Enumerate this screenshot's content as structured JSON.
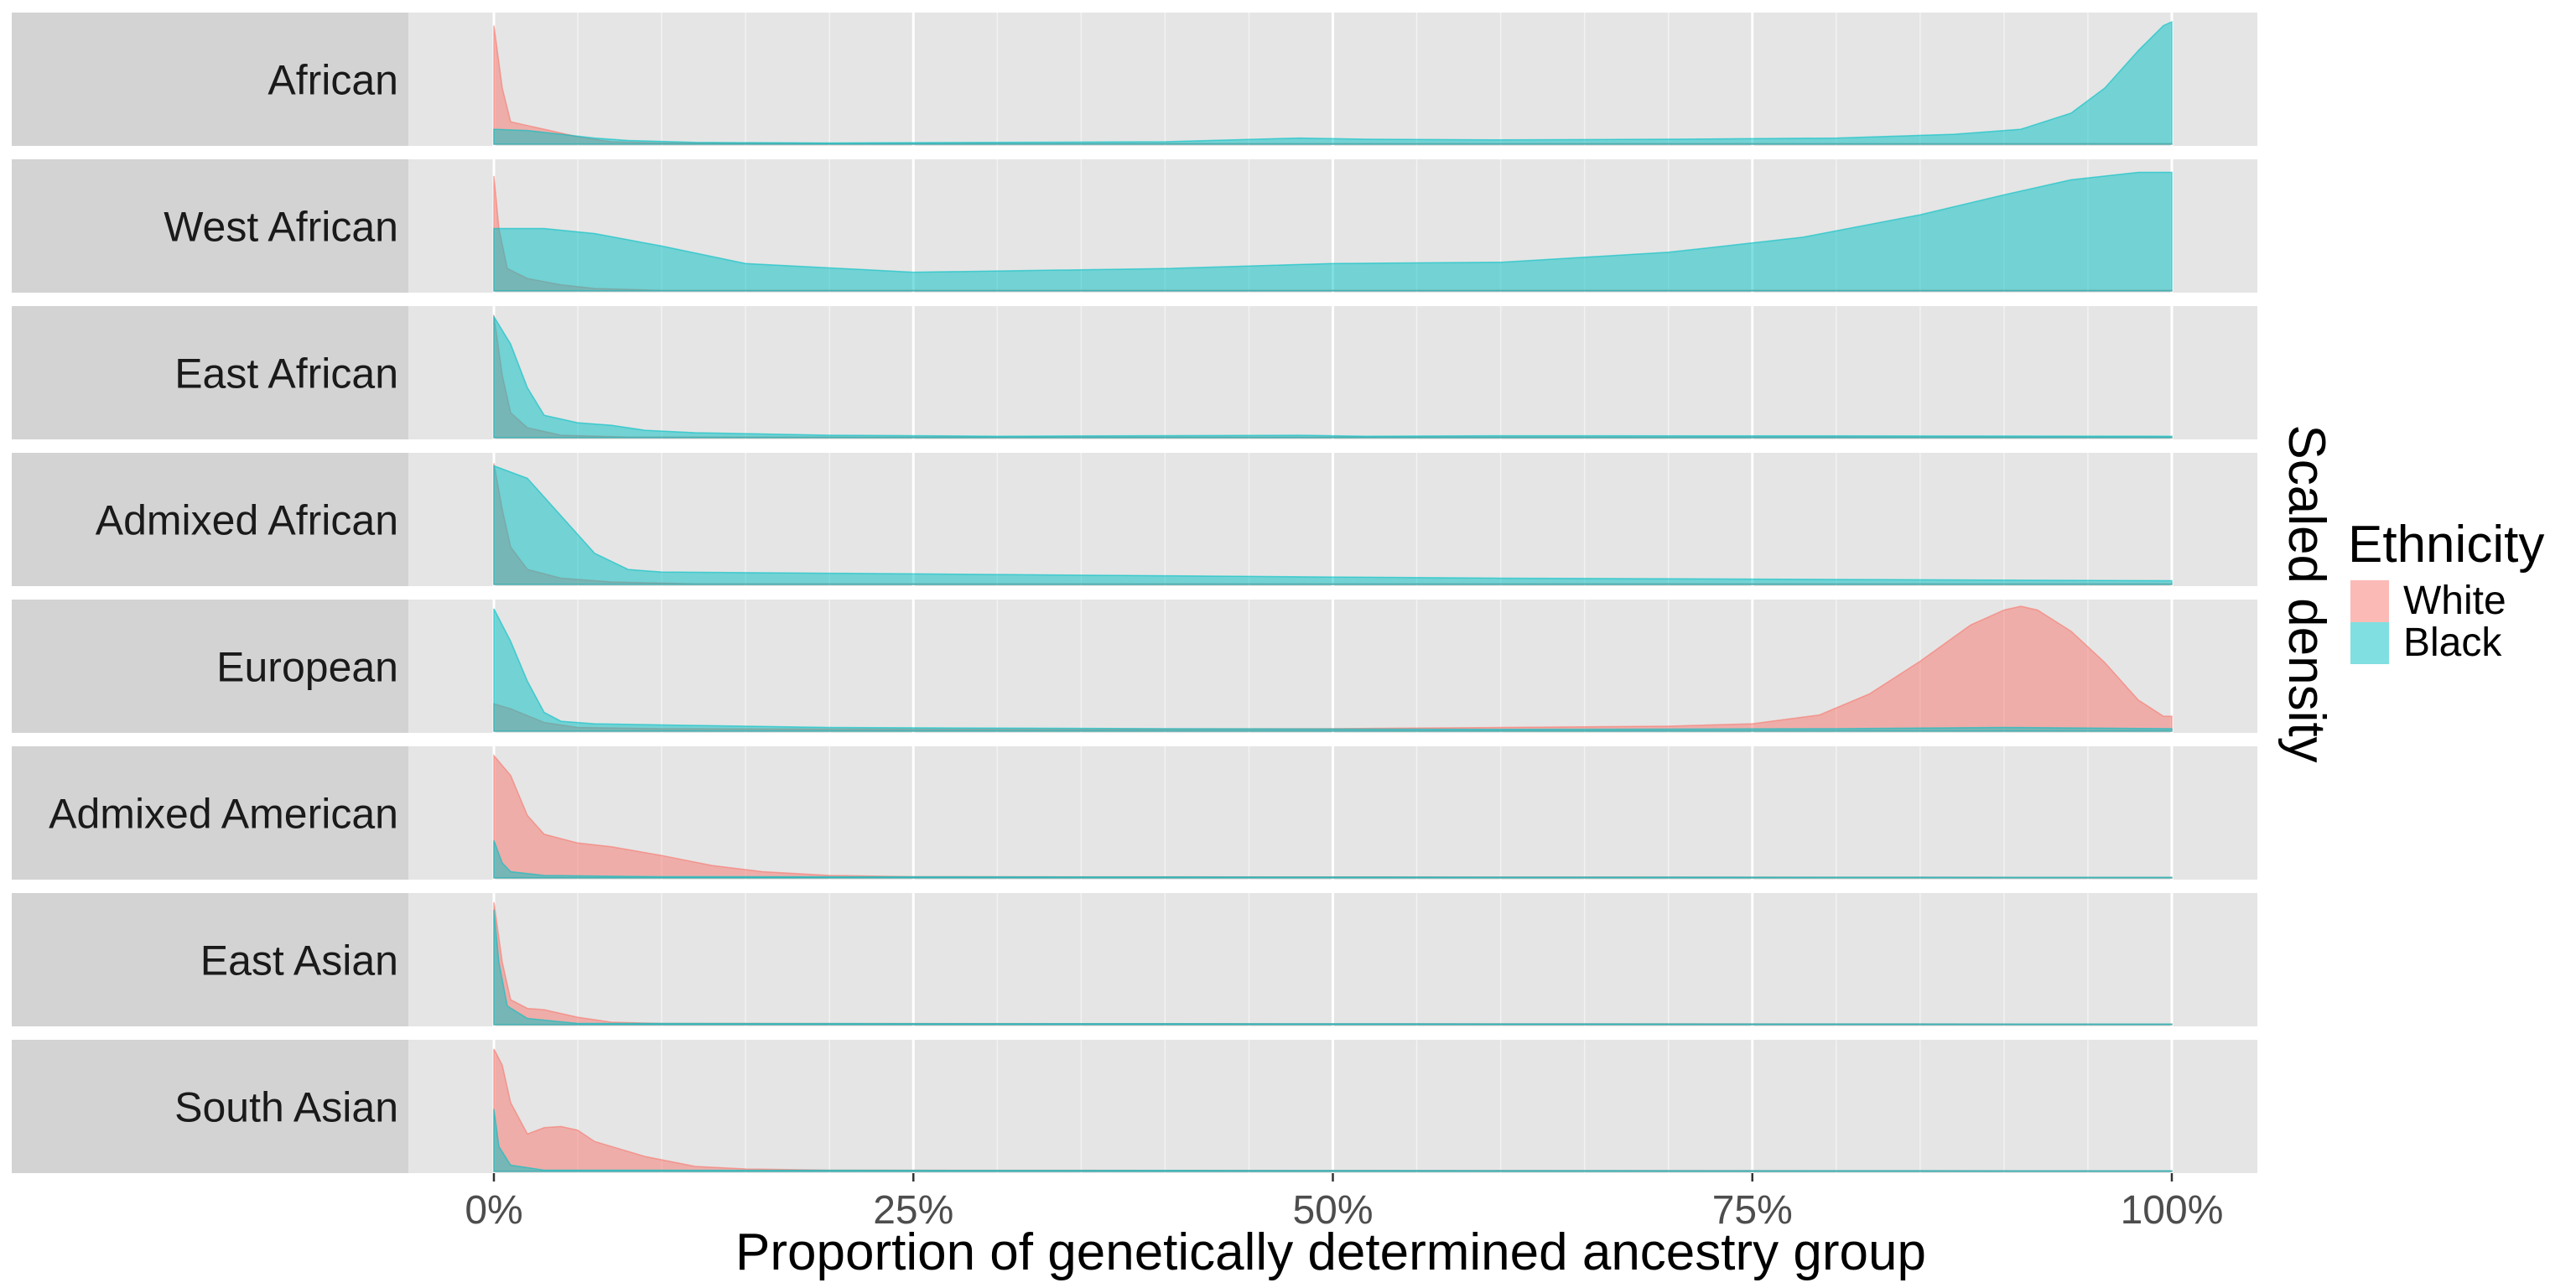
{
  "chart_data": {
    "type": "area",
    "x_axis": {
      "title": "Proportion of genetically determined ancestry group",
      "range": [
        0,
        100
      ],
      "ticks": [
        0,
        25,
        50,
        75,
        100
      ],
      "tick_labels": [
        "0%",
        "25%",
        "50%",
        "75%",
        "100%"
      ],
      "grid": true
    },
    "y_axis_title": "Scaled density",
    "legend": {
      "title": "Ethnicity",
      "position": "right",
      "entries": [
        {
          "name": "White",
          "color": "#F8766D"
        },
        {
          "name": "Black",
          "color": "#00BFC4"
        }
      ]
    },
    "panel_background": "#E5E5E5",
    "strip_background": "#D3D3D3",
    "fill_opacity": 0.5,
    "panels": [
      {
        "label": "African",
        "white": [
          [
            0,
            0.95
          ],
          [
            0.5,
            0.45
          ],
          [
            1,
            0.18
          ],
          [
            2,
            0.15
          ],
          [
            3,
            0.12
          ],
          [
            5,
            0.06
          ],
          [
            7,
            0.02
          ],
          [
            10,
            0.01
          ],
          [
            20,
            0.005
          ],
          [
            100,
            0.005
          ]
        ],
        "black": [
          [
            0,
            0.12
          ],
          [
            2,
            0.11
          ],
          [
            4,
            0.08
          ],
          [
            6,
            0.05
          ],
          [
            8,
            0.03
          ],
          [
            12,
            0.015
          ],
          [
            20,
            0.01
          ],
          [
            40,
            0.02
          ],
          [
            48,
            0.05
          ],
          [
            52,
            0.04
          ],
          [
            60,
            0.035
          ],
          [
            70,
            0.04
          ],
          [
            80,
            0.05
          ],
          [
            87,
            0.08
          ],
          [
            91,
            0.12
          ],
          [
            94,
            0.25
          ],
          [
            96,
            0.45
          ],
          [
            98,
            0.75
          ],
          [
            99.5,
            0.95
          ],
          [
            100,
            0.98
          ]
        ]
      },
      {
        "label": "West African",
        "white": [
          [
            0,
            0.92
          ],
          [
            0.3,
            0.5
          ],
          [
            0.8,
            0.18
          ],
          [
            2,
            0.1
          ],
          [
            4,
            0.05
          ],
          [
            6,
            0.02
          ],
          [
            10,
            0.005
          ],
          [
            100,
            0.005
          ]
        ],
        "black": [
          [
            0,
            0.5
          ],
          [
            3,
            0.5
          ],
          [
            6,
            0.46
          ],
          [
            10,
            0.36
          ],
          [
            15,
            0.22
          ],
          [
            25,
            0.15
          ],
          [
            40,
            0.18
          ],
          [
            50,
            0.22
          ],
          [
            60,
            0.23
          ],
          [
            70,
            0.31
          ],
          [
            78,
            0.43
          ],
          [
            85,
            0.61
          ],
          [
            90,
            0.77
          ],
          [
            94,
            0.89
          ],
          [
            98,
            0.95
          ],
          [
            100,
            0.95
          ]
        ]
      },
      {
        "label": "East African",
        "white": [
          [
            0,
            0.98
          ],
          [
            0.5,
            0.5
          ],
          [
            1,
            0.2
          ],
          [
            2,
            0.08
          ],
          [
            4,
            0.02
          ],
          [
            8,
            0.005
          ],
          [
            100,
            0.005
          ]
        ],
        "black": [
          [
            0,
            0.97
          ],
          [
            1,
            0.75
          ],
          [
            2,
            0.4
          ],
          [
            3,
            0.18
          ],
          [
            5,
            0.12
          ],
          [
            7,
            0.1
          ],
          [
            9,
            0.06
          ],
          [
            12,
            0.04
          ],
          [
            20,
            0.02
          ],
          [
            30,
            0.012
          ],
          [
            48,
            0.02
          ],
          [
            52,
            0.012
          ],
          [
            60,
            0.016
          ],
          [
            80,
            0.015
          ],
          [
            100,
            0.012
          ]
        ]
      },
      {
        "label": "Admixed African",
        "white": [
          [
            0,
            0.97
          ],
          [
            0.5,
            0.6
          ],
          [
            1,
            0.3
          ],
          [
            2,
            0.12
          ],
          [
            4,
            0.05
          ],
          [
            7,
            0.02
          ],
          [
            12,
            0.005
          ],
          [
            100,
            0.005
          ]
        ],
        "black": [
          [
            0,
            0.95
          ],
          [
            2,
            0.85
          ],
          [
            4,
            0.55
          ],
          [
            6,
            0.25
          ],
          [
            8,
            0.12
          ],
          [
            10,
            0.1
          ],
          [
            20,
            0.09
          ],
          [
            30,
            0.08
          ],
          [
            40,
            0.07
          ],
          [
            50,
            0.06
          ],
          [
            60,
            0.05
          ],
          [
            80,
            0.04
          ],
          [
            100,
            0.03
          ]
        ]
      },
      {
        "label": "European",
        "white": [
          [
            0,
            0.22
          ],
          [
            1,
            0.18
          ],
          [
            3,
            0.07
          ],
          [
            5,
            0.03
          ],
          [
            10,
            0.02
          ],
          [
            30,
            0.015
          ],
          [
            50,
            0.02
          ],
          [
            60,
            0.03
          ],
          [
            70,
            0.04
          ],
          [
            75,
            0.06
          ],
          [
            79,
            0.13
          ],
          [
            82,
            0.3
          ],
          [
            85,
            0.56
          ],
          [
            88,
            0.85
          ],
          [
            90,
            0.97
          ],
          [
            91,
            1.0
          ],
          [
            92,
            0.97
          ],
          [
            94,
            0.8
          ],
          [
            96,
            0.55
          ],
          [
            98,
            0.25
          ],
          [
            99.5,
            0.12
          ],
          [
            100,
            0.12
          ]
        ],
        "black": [
          [
            0,
            0.98
          ],
          [
            1,
            0.72
          ],
          [
            2,
            0.4
          ],
          [
            3,
            0.15
          ],
          [
            4,
            0.08
          ],
          [
            6,
            0.06
          ],
          [
            10,
            0.05
          ],
          [
            20,
            0.03
          ],
          [
            40,
            0.02
          ],
          [
            60,
            0.015
          ],
          [
            80,
            0.02
          ],
          [
            90,
            0.03
          ],
          [
            100,
            0.02
          ]
        ]
      },
      {
        "label": "Admixed American",
        "white": [
          [
            0,
            0.98
          ],
          [
            1,
            0.82
          ],
          [
            2,
            0.5
          ],
          [
            3,
            0.35
          ],
          [
            5,
            0.28
          ],
          [
            7,
            0.25
          ],
          [
            10,
            0.18
          ],
          [
            13,
            0.1
          ],
          [
            16,
            0.05
          ],
          [
            20,
            0.02
          ],
          [
            25,
            0.01
          ],
          [
            100,
            0.005
          ]
        ],
        "black": [
          [
            0,
            0.3
          ],
          [
            0.5,
            0.12
          ],
          [
            1,
            0.05
          ],
          [
            3,
            0.02
          ],
          [
            10,
            0.01
          ],
          [
            100,
            0.005
          ]
        ]
      },
      {
        "label": "East Asian",
        "white": [
          [
            0,
            0.98
          ],
          [
            0.5,
            0.5
          ],
          [
            1,
            0.2
          ],
          [
            2,
            0.13
          ],
          [
            3,
            0.12
          ],
          [
            5,
            0.06
          ],
          [
            7,
            0.02
          ],
          [
            10,
            0.01
          ],
          [
            100,
            0.005
          ]
        ],
        "black": [
          [
            0,
            0.92
          ],
          [
            0.3,
            0.5
          ],
          [
            0.8,
            0.15
          ],
          [
            2,
            0.05
          ],
          [
            5,
            0.01
          ],
          [
            100,
            0.005
          ]
        ]
      },
      {
        "label": "South Asian",
        "white": [
          [
            0,
            0.98
          ],
          [
            0.5,
            0.85
          ],
          [
            1,
            0.55
          ],
          [
            2,
            0.3
          ],
          [
            3,
            0.35
          ],
          [
            4,
            0.36
          ],
          [
            5,
            0.33
          ],
          [
            6,
            0.24
          ],
          [
            7,
            0.2
          ],
          [
            9,
            0.12
          ],
          [
            12,
            0.04
          ],
          [
            15,
            0.02
          ],
          [
            20,
            0.01
          ],
          [
            100,
            0.005
          ]
        ],
        "black": [
          [
            0,
            0.5
          ],
          [
            0.3,
            0.2
          ],
          [
            1,
            0.05
          ],
          [
            3,
            0.01
          ],
          [
            100,
            0.005
          ]
        ]
      }
    ]
  }
}
